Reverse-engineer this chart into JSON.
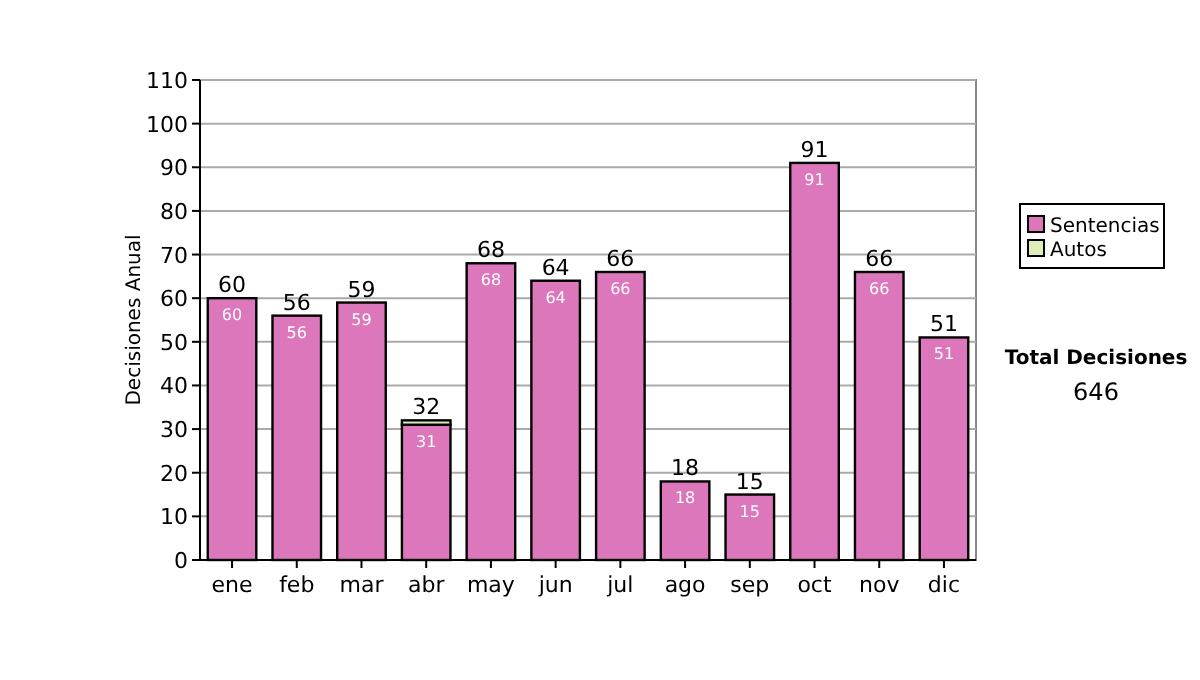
{
  "chart_data": {
    "type": "bar",
    "stacked": true,
    "ylabel": "Decisiones Anual",
    "categories": [
      "ene",
      "feb",
      "mar",
      "abr",
      "may",
      "jun",
      "jul",
      "ago",
      "sep",
      "oct",
      "nov",
      "dic"
    ],
    "series": [
      {
        "name": "Sentencias",
        "color": "#dd77bb",
        "values": [
          60,
          56,
          59,
          31,
          68,
          64,
          66,
          18,
          15,
          91,
          66,
          51
        ],
        "value_labels": [
          "60",
          "56",
          "59",
          "31",
          "68",
          "64",
          "66",
          "18",
          "15",
          "91",
          "66",
          "51"
        ]
      },
      {
        "name": "Autos",
        "color": "#ddeebb",
        "values": [
          0,
          0,
          0,
          1,
          0,
          0,
          0,
          0,
          0,
          0,
          0,
          0
        ]
      }
    ],
    "totals": [
      "60",
      "56",
      "59",
      "32",
      "68",
      "64",
      "66",
      "18",
      "15",
      "91",
      "66",
      "51"
    ],
    "ylim": [
      0,
      110
    ],
    "yticks": [
      0,
      10,
      20,
      30,
      40,
      50,
      60,
      70,
      80,
      90,
      100,
      110
    ],
    "grid": "y",
    "legend": "right",
    "annotations": [
      "Total Decisiones",
      "646"
    ]
  }
}
